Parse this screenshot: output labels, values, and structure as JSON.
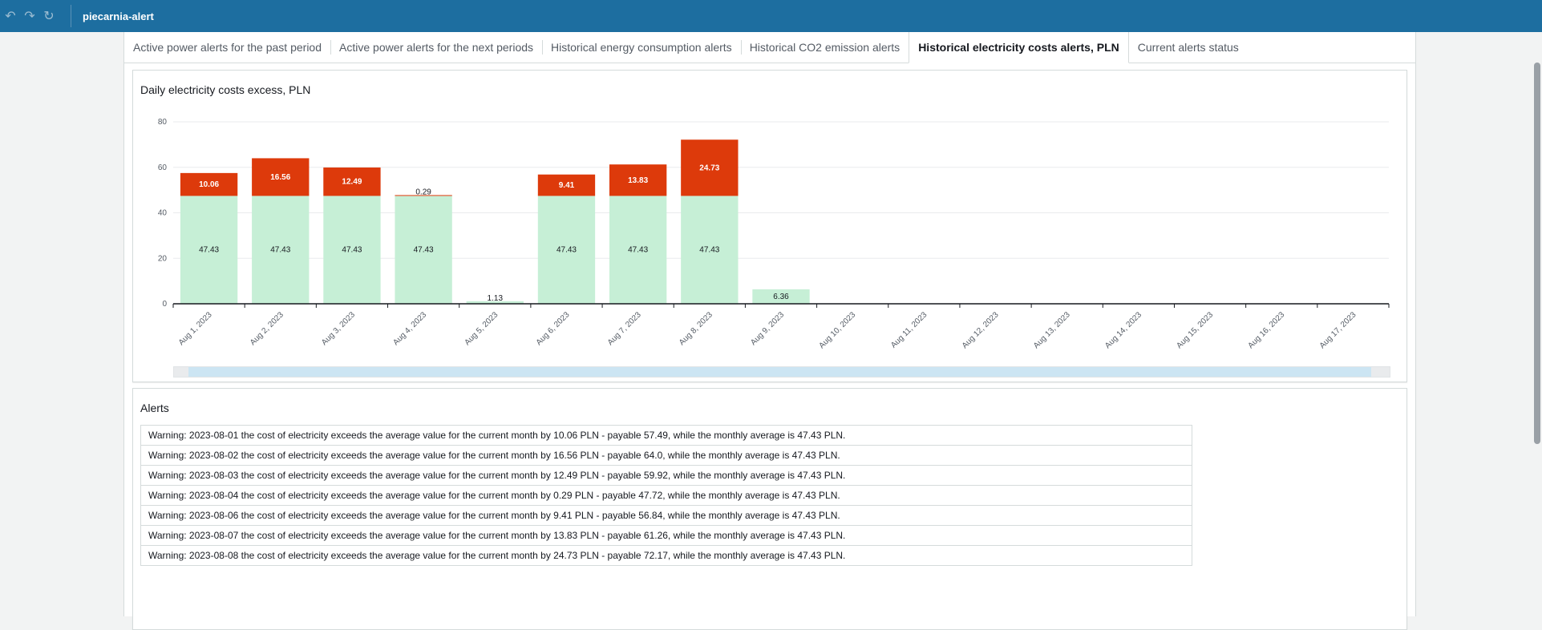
{
  "app": {
    "title": "piecarnia-alert"
  },
  "toolbar": {
    "undo_icon": "undo-icon",
    "redo_icon": "redo-icon",
    "refresh_icon": "refresh-icon"
  },
  "tabs": [
    {
      "label": "Active power alerts for the past period",
      "active": false
    },
    {
      "label": "Active power alerts for the next periods",
      "active": false
    },
    {
      "label": "Historical energy consumption alerts",
      "active": false
    },
    {
      "label": "Historical CO2 emission alerts",
      "active": false
    },
    {
      "label": "Historical electricity costs alerts, PLN",
      "active": true
    },
    {
      "label": "Current alerts status",
      "active": false
    }
  ],
  "chart_card": {
    "title": "Daily electricity costs excess, PLN"
  },
  "chart_data": {
    "type": "bar",
    "stacked": true,
    "title": "Daily electricity costs excess, PLN",
    "categories": [
      "Aug 1, 2023",
      "Aug 2, 2023",
      "Aug 3, 2023",
      "Aug 4, 2023",
      "Aug 5, 2023",
      "Aug 6, 2023",
      "Aug 7, 2023",
      "Aug 8, 2023",
      "Aug 9, 2023",
      "Aug 10, 2023",
      "Aug 11, 2023",
      "Aug 12, 2023",
      "Aug 13, 2023",
      "Aug 14, 2023",
      "Aug 15, 2023",
      "Aug 16, 2023",
      "Aug 17, 2023"
    ],
    "series": [
      {
        "color": "#c6efd6",
        "label_color": "#16191f",
        "values": [
          47.43,
          47.43,
          47.43,
          47.43,
          1.13,
          47.43,
          47.43,
          47.43,
          6.36,
          null,
          null,
          null,
          null,
          null,
          null,
          null,
          null
        ]
      },
      {
        "color": "#dd3a0b",
        "label_color": "#ffffff",
        "values": [
          10.06,
          16.56,
          12.49,
          0.29,
          null,
          9.41,
          13.83,
          24.73,
          null,
          null,
          null,
          null,
          null,
          null,
          null,
          null,
          null
        ]
      }
    ],
    "ylim": [
      0,
      80
    ],
    "yticks": [
      0,
      20,
      40,
      60,
      80
    ],
    "grid": true
  },
  "alerts_card": {
    "title": "Alerts",
    "items": [
      "Warning: 2023-08-01 the cost of electricity exceeds the average value for the current month by 10.06 PLN - payable 57.49, while the monthly average is 47.43 PLN.",
      "Warning: 2023-08-02 the cost of electricity exceeds the average value for the current month by 16.56 PLN - payable 64.0, while the monthly average is 47.43 PLN.",
      "Warning: 2023-08-03 the cost of electricity exceeds the average value for the current month by 12.49 PLN - payable 59.92, while the monthly average is 47.43 PLN.",
      "Warning: 2023-08-04 the cost of electricity exceeds the average value for the current month by 0.29 PLN - payable 47.72, while the monthly average is 47.43 PLN.",
      "Warning: 2023-08-06 the cost of electricity exceeds the average value for the current month by 9.41 PLN - payable 56.84, while the monthly average is 47.43 PLN.",
      "Warning: 2023-08-07 the cost of electricity exceeds the average value for the current month by 13.83 PLN - payable 61.26, while the monthly average is 47.43 PLN.",
      "Warning: 2023-08-08 the cost of electricity exceeds the average value for the current month by 24.73 PLN - payable 72.17, while the monthly average is 47.43 PLN."
    ]
  }
}
